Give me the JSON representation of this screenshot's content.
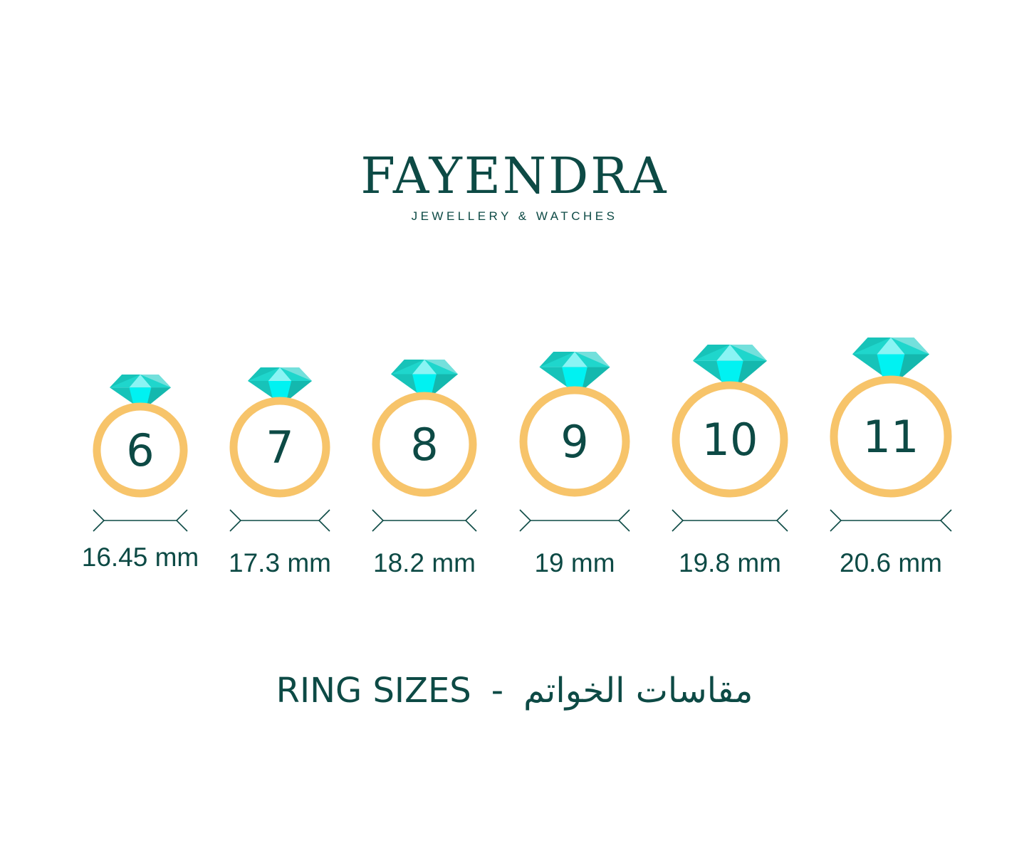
{
  "brand": {
    "name": "FAYENDRA",
    "tagline": "JEWELLERY & WATCHES"
  },
  "colors": {
    "text": "#0d4a45",
    "ring": "#f7c46a",
    "gem_dark": "#17c3b9",
    "gem_mid": "#1fd6cc",
    "gem_light": "#74e0dc",
    "gem_bright": "#00f2f2"
  },
  "ring_sizes": [
    {
      "size": "6",
      "diameter": "16.45 mm"
    },
    {
      "size": "7",
      "diameter": "17.3 mm"
    },
    {
      "size": "8",
      "diameter": "18.2 mm"
    },
    {
      "size": "9",
      "diameter": "19 mm"
    },
    {
      "size": "10",
      "diameter": "19.8 mm"
    },
    {
      "size": "11",
      "diameter": "20.6 mm"
    }
  ],
  "footer": {
    "title_en": "RING SIZES",
    "separator": "-",
    "title_ar": "مقاسات الخواتم"
  }
}
